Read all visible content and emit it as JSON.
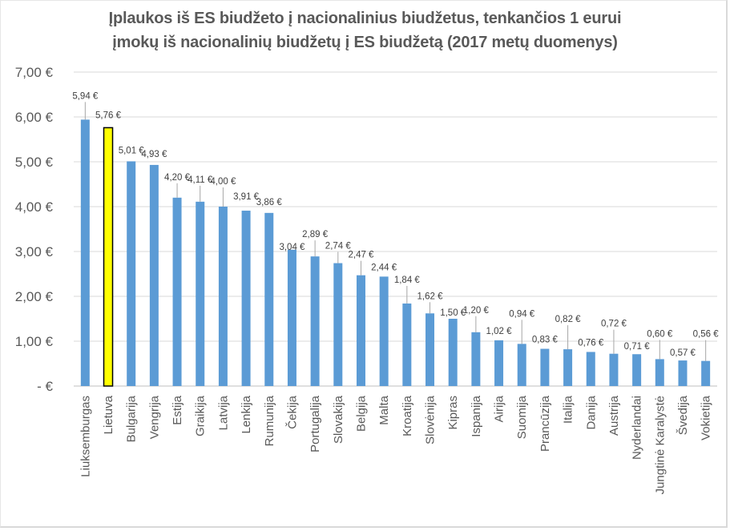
{
  "chart_data": {
    "type": "bar",
    "title": "Įplaukos iš ES biudžeto į nacionalinius biudžetus, tenkančios 1 eurui įmokų iš nacionalinių biudžetų į ES biudžetą (2017 metų duomenys)",
    "title_lines": [
      "Įplaukos iš ES biudžeto į nacionalinius biudžetus, tenkančios 1 eurui",
      "įmokų iš nacionalinių biudžetų į ES biudžetą (2017 metų duomenys)"
    ],
    "xlabel": "",
    "ylabel": "",
    "ylim": [
      0,
      7
    ],
    "yticks": [
      0,
      1,
      2,
      3,
      4,
      5,
      6,
      7
    ],
    "ytick_labels": [
      "-   €",
      "1,00 €",
      "2,00 €",
      "3,00 €",
      "4,00 €",
      "5,00 €",
      "6,00 €",
      "7,00 €"
    ],
    "grid": true,
    "legend": "none",
    "bar_color": "#5b9bd5",
    "highlight_color": "#ffff00",
    "highlight_category": "Lietuva",
    "categories": [
      "Liuksemburgas",
      "Lietuva",
      "Bulgarija",
      "Vengrija",
      "Estija",
      "Graikija",
      "Latvija",
      "Lenkija",
      "Rumunija",
      "Čekija",
      "Portugalija",
      "Slovakija",
      "Belgija",
      "Malta",
      "Kroatija",
      "Slovėnija",
      "Kipras",
      "Ispanija",
      "Airija",
      "Suomija",
      "Prancūzija",
      "Italija",
      "Danija",
      "Austrija",
      "Nyderlandai",
      "Jungtinė Karalystė",
      "Švedija",
      "Vokietija"
    ],
    "values": [
      5.94,
      5.76,
      5.01,
      4.93,
      4.2,
      4.11,
      4.0,
      3.91,
      3.86,
      3.04,
      2.89,
      2.74,
      2.47,
      2.44,
      1.84,
      1.62,
      1.5,
      1.2,
      1.02,
      0.94,
      0.83,
      0.82,
      0.76,
      0.72,
      0.71,
      0.6,
      0.57,
      0.56
    ],
    "data_labels": [
      "5,94 €",
      "5,76 €",
      "5,01 €",
      "4,93 €",
      "4,20 €",
      "4,11 €",
      "4,00 €",
      "3,91 €",
      "3,86 €",
      "3,04 €",
      "2,89 €",
      "2,74 €",
      "2,47 €",
      "2,44 €",
      "1,84 €",
      "1,62 €",
      "1,50 €",
      "1,20 €",
      "1,02 €",
      "0,94 €",
      "0,83 €",
      "0,82 €",
      "0,76 €",
      "0,72 €",
      "0,71 €",
      "0,60 €",
      "0,57 €",
      "0,56 €"
    ]
  }
}
